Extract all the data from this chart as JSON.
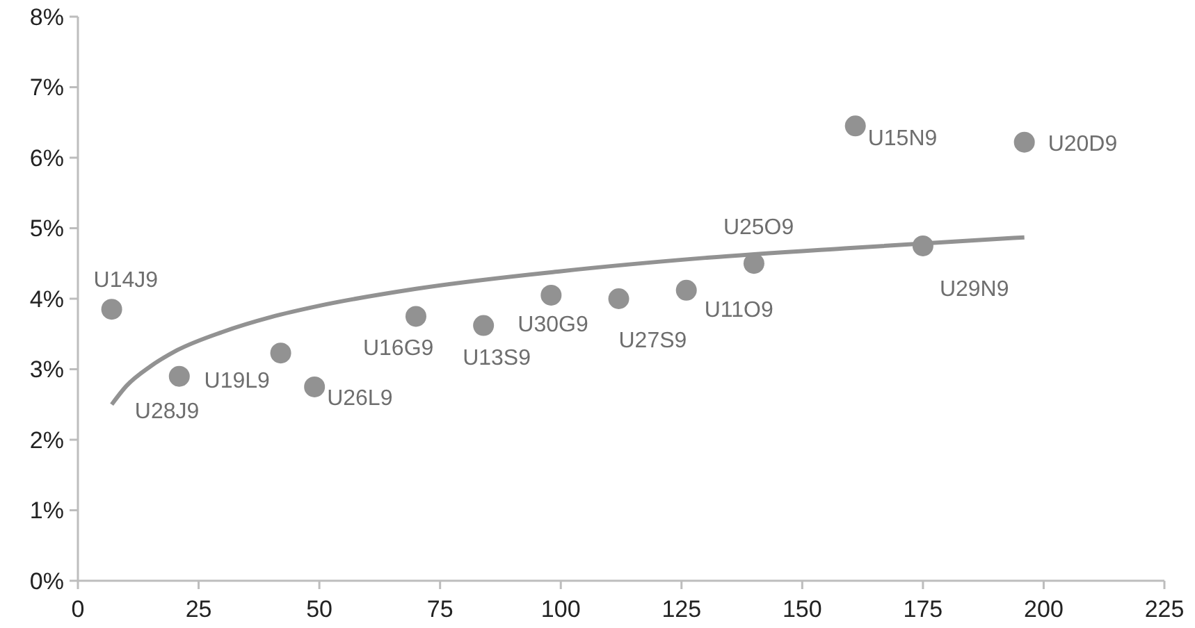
{
  "chart_data": {
    "type": "scatter",
    "grid": false,
    "xlim": [
      0,
      225
    ],
    "xticks": [
      0,
      25,
      50,
      75,
      100,
      125,
      150,
      175,
      200,
      225
    ],
    "ylim": [
      0,
      8
    ],
    "yticks": [
      {
        "value": 0,
        "label": "0%"
      },
      {
        "value": 1,
        "label": "1%"
      },
      {
        "value": 2,
        "label": "2%"
      },
      {
        "value": 3,
        "label": "3%"
      },
      {
        "value": 4,
        "label": "4%"
      },
      {
        "value": 5,
        "label": "5%"
      },
      {
        "value": 6,
        "label": "6%"
      },
      {
        "value": 7,
        "label": "7%"
      },
      {
        "value": 8,
        "label": "8%"
      }
    ],
    "series": [
      {
        "marker": "circle",
        "color": "#929292",
        "x": [
          7,
          21,
          42,
          49,
          70,
          84,
          98,
          112,
          126,
          140,
          161,
          175,
          196
        ],
        "values": [
          3.85,
          2.9,
          3.23,
          2.75,
          3.75,
          3.62,
          4.05,
          4.0,
          4.12,
          4.5,
          6.45,
          4.75,
          6.22
        ]
      },
      {
        "type": "line",
        "color": "#929292",
        "x": [
          7,
          10,
          15,
          20,
          30,
          40,
          50,
          70,
          100,
          130,
          160,
          196
        ],
        "values": [
          2.5,
          2.76,
          3.04,
          3.25,
          3.53,
          3.74,
          3.9,
          4.14,
          4.39,
          4.58,
          4.72,
          4.87
        ]
      }
    ],
    "annotations": [
      {
        "text": "U14J9",
        "x": 7,
        "y": 3.85
      },
      {
        "text": "U28J9",
        "x": 21,
        "y": 2.9
      },
      {
        "text": "U19L9",
        "x": 42,
        "y": 3.23
      },
      {
        "text": "U26L9",
        "x": 49,
        "y": 2.75
      },
      {
        "text": "U16G9",
        "x": 70,
        "y": 3.75
      },
      {
        "text": "U13S9",
        "x": 84,
        "y": 3.62
      },
      {
        "text": "U30G9",
        "x": 98,
        "y": 4.05
      },
      {
        "text": "U27S9",
        "x": 112,
        "y": 4.0
      },
      {
        "text": "U11O9",
        "x": 126,
        "y": 4.12
      },
      {
        "text": "U25O9",
        "x": 140,
        "y": 4.5
      },
      {
        "text": "U15N9",
        "x": 161,
        "y": 6.45
      },
      {
        "text": "U29N9",
        "x": 175,
        "y": 4.75
      },
      {
        "text": "U20D9",
        "x": 196,
        "y": 6.22
      }
    ]
  }
}
